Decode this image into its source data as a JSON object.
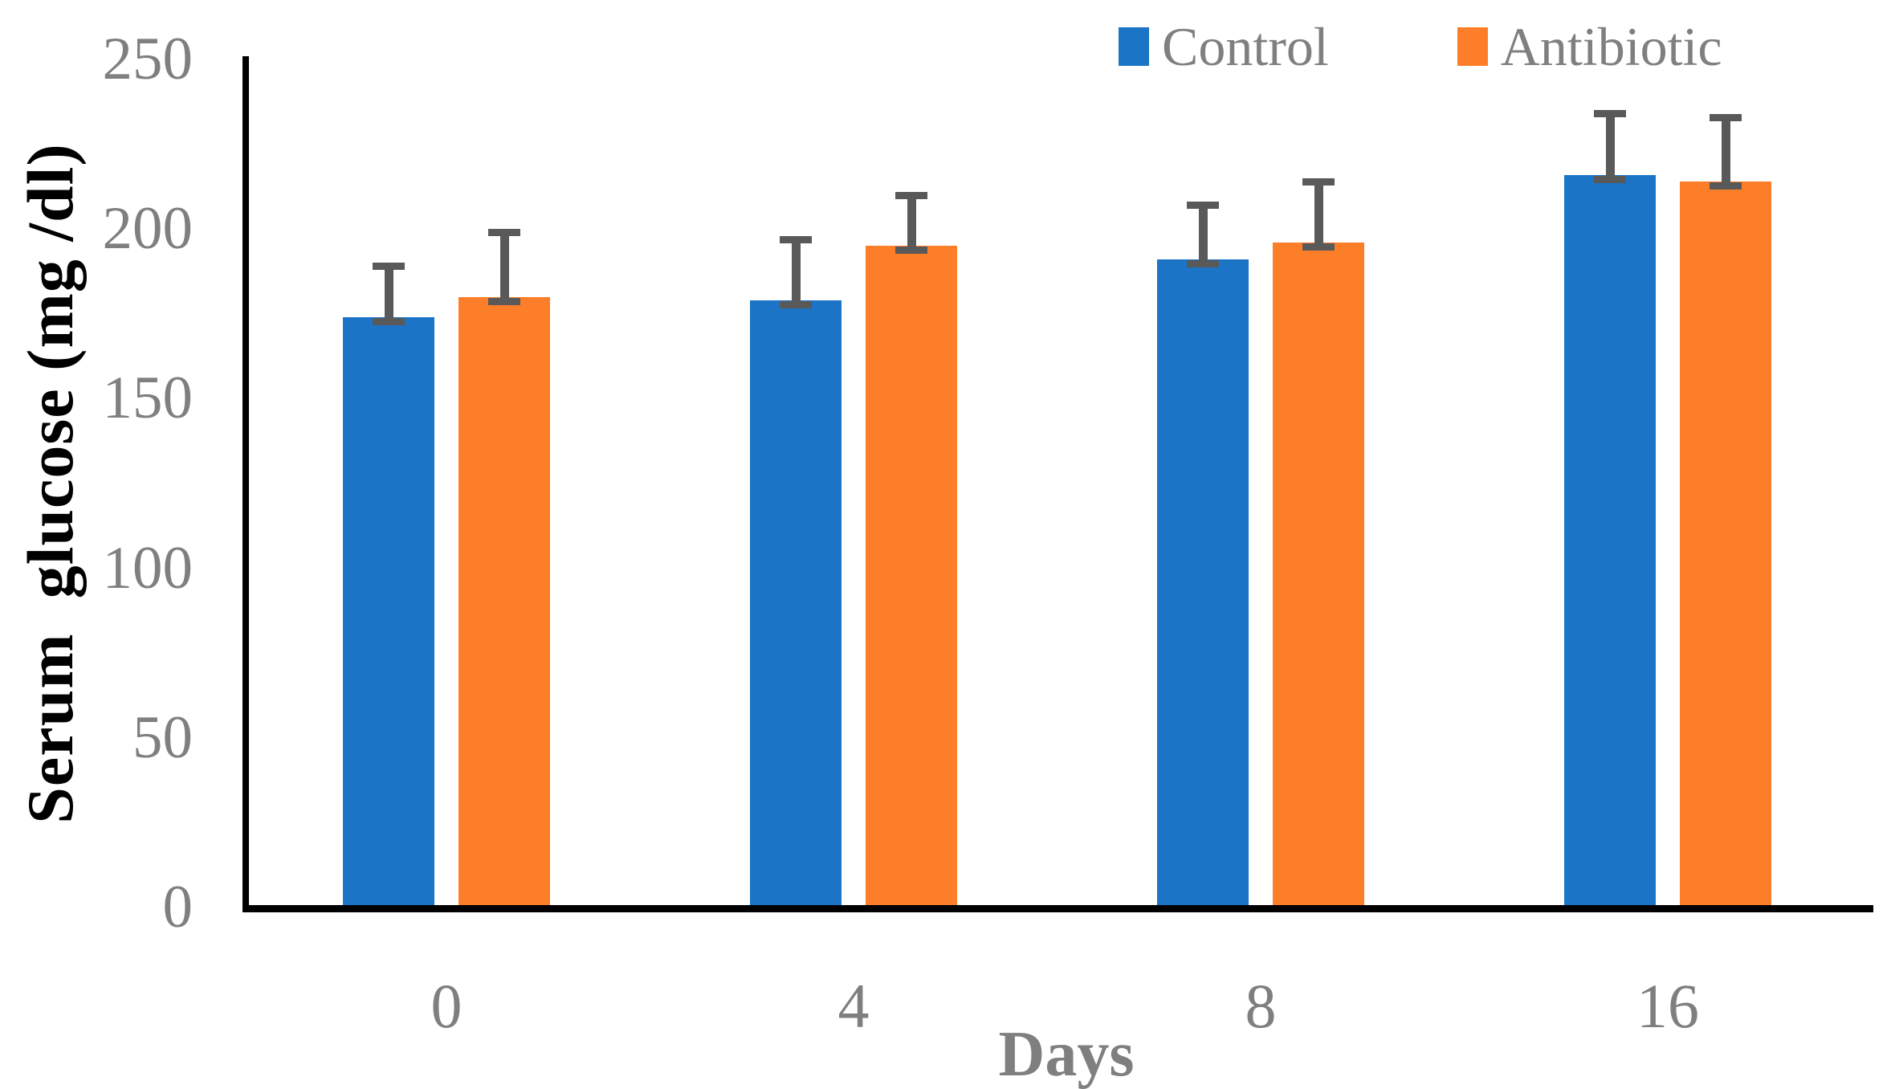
{
  "chart_data": {
    "type": "bar",
    "title": "",
    "xlabel": "Days",
    "ylabel": "Serum  glucose (mg /dl)",
    "categories": [
      "0",
      "4",
      "8",
      "16"
    ],
    "series": [
      {
        "name": "Control",
        "color": "#1b74c6",
        "values": [
          174,
          179,
          191,
          216
        ],
        "errors_plus": [
          16,
          19,
          17,
          19
        ]
      },
      {
        "name": "Antibiotic",
        "color": "#fd7e28",
        "values": [
          180,
          195,
          196,
          214
        ],
        "errors_plus": [
          20,
          16,
          19,
          20
        ]
      }
    ],
    "ylim": [
      0,
      250
    ],
    "yticks": [
      0,
      50,
      100,
      150,
      200,
      250
    ],
    "grid": false,
    "legend_position": "top-right",
    "error_bar_color": "#595959",
    "axis_color": "#000000",
    "tick_label_color": "#7f7f7f",
    "background_color": "#ffffff"
  }
}
